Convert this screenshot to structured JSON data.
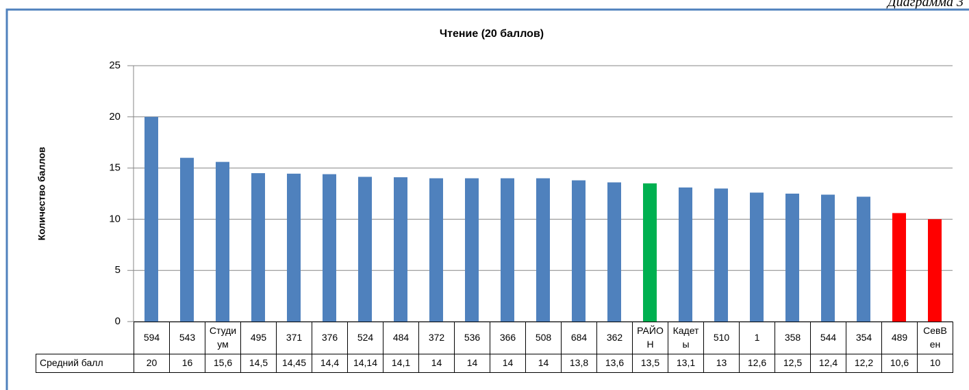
{
  "caption": "Диаграмма 3",
  "chart_data": {
    "type": "bar",
    "title": "Чтение (20 баллов)",
    "y_label": "Количество баллов",
    "data_table_label": "Средний балл",
    "categories": [
      "594",
      "543",
      "Студиум",
      "495",
      "371",
      "376",
      "524",
      "484",
      "372",
      "536",
      "366",
      "508",
      "684",
      "362",
      "РАЙОН",
      "Кадеты",
      "510",
      "1",
      "358",
      "544",
      "354",
      "489",
      "СевВен"
    ],
    "values": [
      20,
      16,
      15.6,
      14.5,
      14.45,
      14.4,
      14.14,
      14.1,
      14,
      14,
      14,
      14,
      13.8,
      13.6,
      13.5,
      13.1,
      13,
      12.6,
      12.5,
      12.4,
      12.2,
      10.6,
      10
    ],
    "value_labels": [
      "20",
      "16",
      "15,6",
      "14,5",
      "14,45",
      "14,4",
      "14,14",
      "14,1",
      "14",
      "14",
      "14",
      "14",
      "13,8",
      "13,6",
      "13,5",
      "13,1",
      "13",
      "12,6",
      "12,5",
      "12,4",
      "12,2",
      "10,6",
      "10"
    ],
    "colors": [
      "#4f81bd",
      "#4f81bd",
      "#4f81bd",
      "#4f81bd",
      "#4f81bd",
      "#4f81bd",
      "#4f81bd",
      "#4f81bd",
      "#4f81bd",
      "#4f81bd",
      "#4f81bd",
      "#4f81bd",
      "#4f81bd",
      "#4f81bd",
      "#00b050",
      "#4f81bd",
      "#4f81bd",
      "#4f81bd",
      "#4f81bd",
      "#4f81bd",
      "#4f81bd",
      "#ff0000",
      "#ff0000"
    ],
    "ylim": [
      0,
      25
    ],
    "yticks": [
      0,
      5,
      10,
      15,
      20,
      25
    ],
    "grid": true
  }
}
